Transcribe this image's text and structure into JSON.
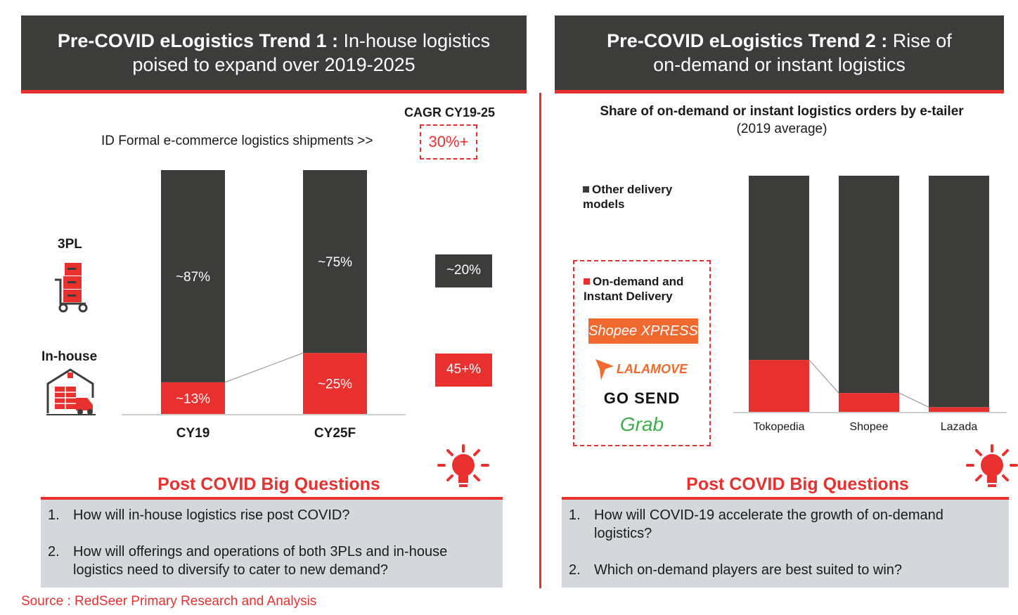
{
  "left": {
    "header_bold": "Pre-COVID eLogistics Trend 1 :",
    "header_rest_line1": " In-house logistics",
    "header_line2": "poised to expand over 2019-2025",
    "cagr_label": "CAGR CY19-25",
    "shipments_label": "ID Formal e-commerce logistics shipments >>",
    "shipments_cagr": "30%+",
    "label_3pl": "3PL",
    "label_inhouse": "In-house",
    "cagr_3pl": "~20%",
    "cagr_inhouse": "45+%",
    "questions_title": "Post COVID Big Questions",
    "questions": [
      {
        "num": "1.",
        "text": "How will in-house logistics rise post COVID?"
      },
      {
        "num": "2.",
        "text": "How will offerings and operations of  both 3PLs and in-house logistics need to diversify to cater to new demand?"
      }
    ],
    "source": "Source : RedSeer Primary Research and Analysis"
  },
  "right": {
    "header_bold": "Pre-COVID eLogistics Trend 2 :",
    "header_rest_line1": " Rise of",
    "header_line2": "on-demand or instant logistics",
    "chart_title": "Share of on-demand or instant logistics orders by e-tailer",
    "chart_subtitle": "(2019 average)",
    "legend_other": "Other delivery models",
    "legend_ondemand": "On-demand and Instant Delivery",
    "logos": [
      "Shopee XPRESS",
      "LALAMOVE",
      "GO SEND",
      "Grab"
    ],
    "questions_title": "Post COVID Big Questions",
    "questions": [
      {
        "num": "1.",
        "text": "How will COVID-19 accelerate the growth of on-demand logistics?"
      },
      {
        "num": "2.",
        "text": "Which on-demand players are best suited to win?"
      }
    ]
  },
  "colors": {
    "dark": "#3c3c3b",
    "red": "#e8302f",
    "box": "#d4d8dc"
  },
  "chart_data": [
    {
      "type": "bar",
      "stacked": true,
      "categories": [
        "CY19",
        "CY25F"
      ],
      "series": [
        {
          "name": "In-house",
          "values": [
            13,
            25
          ],
          "labels": [
            "~13%",
            "~25%"
          ],
          "color": "#e8302f"
        },
        {
          "name": "3PL",
          "values": [
            87,
            75
          ],
          "labels": [
            "~87%",
            "~75%"
          ],
          "color": "#3c3c3b"
        }
      ],
      "ylim": [
        0,
        100
      ]
    },
    {
      "type": "bar",
      "stacked": true,
      "title": "Share of on-demand or instant logistics orders by e-tailer",
      "subtitle": "(2019 average)",
      "categories": [
        "Tokopedia",
        "Shopee",
        "Lazada"
      ],
      "series": [
        {
          "name": "On-demand and Instant Delivery",
          "values": [
            22,
            8,
            2
          ],
          "color": "#e8302f"
        },
        {
          "name": "Other delivery models",
          "values": [
            78,
            92,
            98
          ],
          "color": "#3c3c3b"
        }
      ],
      "ylim": [
        0,
        100
      ]
    }
  ]
}
